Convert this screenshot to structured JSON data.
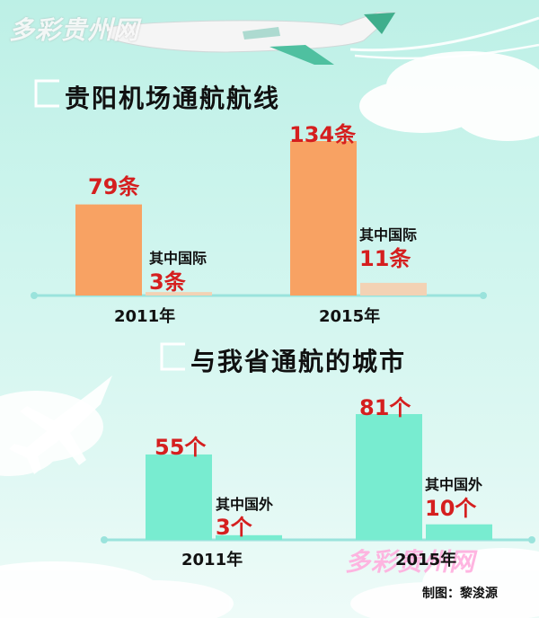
{
  "watermark": "多彩贵州网",
  "credit": "制图：黎浚源",
  "colors": {
    "airline_bar": "#f8a263",
    "airline_intl_bar": "#f3d2b4",
    "city_bar": "#78ecd0",
    "city_intl_bar": "#78ecd0",
    "baseline": "#9ae3dc",
    "value_text": "#d51f1f"
  },
  "chart_data": [
    {
      "type": "bar",
      "title": "贵阳机场通航航线",
      "categories": [
        "2011年",
        "2015年"
      ],
      "series": [
        {
          "values": [
            79,
            134
          ],
          "labels": [
            "79条",
            "134条"
          ]
        },
        {
          "name": "其中国际",
          "values": [
            3,
            11
          ],
          "labels": [
            "3条",
            "11条"
          ]
        }
      ],
      "xlabel": "",
      "ylabel": "",
      "ylim": [
        0,
        134
      ]
    },
    {
      "type": "bar",
      "title": "与我省通航的城市",
      "categories": [
        "2011年",
        "2015年"
      ],
      "series": [
        {
          "values": [
            55,
            81
          ],
          "labels": [
            "55个",
            "81个"
          ]
        },
        {
          "name": "其中国外",
          "values": [
            3,
            10
          ],
          "labels": [
            "3个",
            "10个"
          ]
        }
      ],
      "xlabel": "",
      "ylabel": "",
      "ylim": [
        0,
        81
      ]
    }
  ]
}
